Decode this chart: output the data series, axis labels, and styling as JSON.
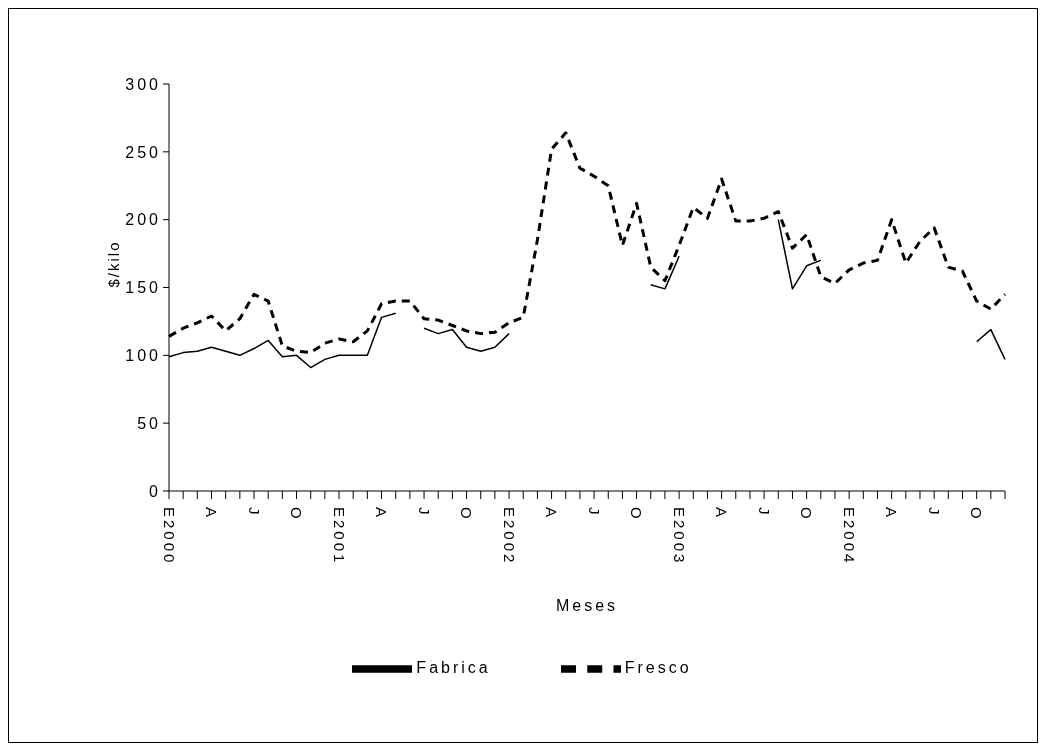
{
  "chart_data": {
    "type": "line",
    "xlabel": "Meses",
    "ylabel": "$/kilo",
    "categories": [
      "E2000",
      null,
      null,
      "A",
      null,
      null,
      "J",
      null,
      null,
      "O",
      null,
      null,
      "E2001",
      null,
      null,
      "A",
      null,
      null,
      "J",
      null,
      null,
      "O",
      null,
      null,
      "E2002",
      null,
      null,
      "A",
      null,
      null,
      "J",
      null,
      null,
      "O",
      null,
      null,
      "E2003",
      null,
      null,
      "A",
      null,
      null,
      "J",
      null,
      null,
      "O",
      null,
      null,
      "E2004",
      null,
      null,
      "A",
      null,
      null,
      "J",
      null,
      null,
      "O",
      null,
      null
    ],
    "series": [
      {
        "name": "Fabrica",
        "color": "#000000",
        "line_style": "solid",
        "values": [
          99,
          102,
          103,
          106,
          103,
          100,
          105,
          111,
          99,
          100,
          91,
          97,
          100,
          100,
          100,
          128,
          131,
          null,
          120,
          116,
          119,
          106,
          103,
          106,
          116,
          null,
          null,
          null,
          null,
          null,
          null,
          null,
          null,
          null,
          152,
          149,
          173,
          null,
          null,
          null,
          null,
          null,
          null,
          200,
          149,
          166,
          170,
          null,
          null,
          null,
          null,
          null,
          null,
          null,
          null,
          null,
          null,
          110,
          119,
          97
        ]
      },
      {
        "name": "Fresco",
        "color": "#000000",
        "line_style": "dashed",
        "values": [
          114,
          120,
          124,
          129,
          118,
          127,
          145,
          140,
          107,
          103,
          102,
          109,
          112,
          110,
          118,
          138,
          140,
          140,
          127,
          126,
          122,
          118,
          116,
          117,
          124,
          128,
          185,
          252,
          264,
          238,
          232,
          225,
          181,
          212,
          165,
          155,
          181,
          209,
          201,
          230,
          199,
          199,
          201,
          206,
          179,
          189,
          158,
          153,
          163,
          168,
          170,
          200,
          168,
          184,
          194,
          165,
          162,
          140,
          134,
          145
        ]
      }
    ],
    "ylim": [
      0,
      300
    ],
    "yticks": [
      0,
      50,
      100,
      150,
      200,
      250,
      300
    ],
    "grid": false,
    "legend": "bottom",
    "marker": "none"
  }
}
